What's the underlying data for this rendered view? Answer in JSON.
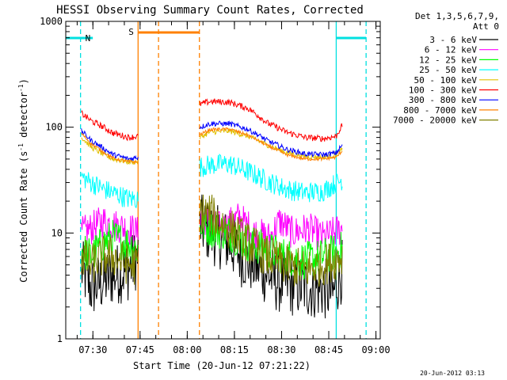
{
  "chart_data": {
    "type": "line",
    "title": "HESSI Observing Summary Count Rates, Corrected",
    "xlabel": "Start Time (20-Jun-12 07:21:22)",
    "ylabel_main": "Corrected Count Rate (s",
    "ylabel_sup1": "-1",
    "ylabel_mid": " detector",
    "ylabel_sup2": "-1",
    "ylabel_end": ")",
    "y_scale": "log",
    "ylim": [
      1,
      1000
    ],
    "xlim_minutes": [
      0,
      100
    ],
    "x_ticks": [
      {
        "label": "07:30",
        "t": 8.63
      },
      {
        "label": "07:45",
        "t": 23.63
      },
      {
        "label": "08:00",
        "t": 38.63
      },
      {
        "label": "08:15",
        "t": 53.63
      },
      {
        "label": "08:30",
        "t": 68.63
      },
      {
        "label": "08:45",
        "t": 83.63
      },
      {
        "label": "09:00",
        "t": 98.63
      }
    ],
    "y_ticks": [
      {
        "label": "1",
        "v": 1
      },
      {
        "label": "10",
        "v": 10
      },
      {
        "label": "100",
        "v": 100
      },
      {
        "label": "1000",
        "v": 1000
      }
    ],
    "legend_header": [
      "Det 1,3,5,6,7,9,",
      "Att 0"
    ],
    "legend_placement": "right",
    "timestamp": "20-Jun-2012 03:13",
    "night_intervals": [
      [
        0,
        8.6
      ],
      [
        86.0,
        95.5
      ]
    ],
    "night_label": "N",
    "night_color": "#00e0e0",
    "saa_interval": [
      23.0,
      42.5
    ],
    "saa_label": "S",
    "saa_color": "#ff8000",
    "vertical_markers": [
      {
        "t": 4.7,
        "color": "#00e0e0",
        "style": "dash"
      },
      {
        "t": 86.0,
        "color": "#00e0e0",
        "style": "solid"
      },
      {
        "t": 95.5,
        "color": "#00e0e0",
        "style": "dash"
      },
      {
        "t": 23.0,
        "color": "#ff8000",
        "style": "solid"
      },
      {
        "t": 29.5,
        "color": "#ff8000",
        "style": "dash"
      },
      {
        "t": 42.5,
        "color": "#ff8000",
        "style": "dash"
      }
    ],
    "series": [
      {
        "name": "3 - 6 keV",
        "color": "#000000",
        "noise": 0.3,
        "points": [
          [
            5,
            4.5
          ],
          [
            8,
            3
          ],
          [
            12,
            3.5
          ],
          [
            15,
            4
          ],
          [
            20,
            4.5
          ],
          [
            23,
            6
          ],
          [
            42.7,
            12
          ],
          [
            46,
            10
          ],
          [
            52,
            8
          ],
          [
            56,
            6
          ],
          [
            62,
            4.5
          ],
          [
            67,
            3.5
          ],
          [
            72,
            3.2
          ],
          [
            78,
            3
          ],
          [
            82,
            3
          ],
          [
            85,
            2.6
          ],
          [
            88,
            4.5
          ]
        ]
      },
      {
        "name": "6 - 12 keV",
        "color": "#ff00ff",
        "noise": 0.16,
        "points": [
          [
            5,
            10
          ],
          [
            8,
            11
          ],
          [
            12,
            13
          ],
          [
            15,
            12
          ],
          [
            20,
            11
          ],
          [
            23,
            10
          ],
          [
            42.7,
            15
          ],
          [
            46,
            12
          ],
          [
            50,
            11
          ],
          [
            55,
            14
          ],
          [
            60,
            10
          ],
          [
            65,
            9
          ],
          [
            68,
            13
          ],
          [
            72,
            10
          ],
          [
            77,
            11
          ],
          [
            82,
            9
          ],
          [
            85,
            10
          ],
          [
            88,
            11
          ]
        ]
      },
      {
        "name": "12 - 25 keV",
        "color": "#00ff00",
        "noise": 0.18,
        "points": [
          [
            5,
            7
          ],
          [
            8,
            6
          ],
          [
            12,
            8
          ],
          [
            15,
            9
          ],
          [
            20,
            8
          ],
          [
            23,
            7
          ],
          [
            42.7,
            12
          ],
          [
            46,
            11
          ],
          [
            52,
            10
          ],
          [
            58,
            8
          ],
          [
            64,
            7
          ],
          [
            70,
            6
          ],
          [
            76,
            5.5
          ],
          [
            82,
            6
          ],
          [
            88,
            7
          ]
        ]
      },
      {
        "name": "25 - 50 keV",
        "color": "#00ffff",
        "noise": 0.1,
        "points": [
          [
            5,
            34
          ],
          [
            8,
            30
          ],
          [
            12,
            26
          ],
          [
            15,
            24
          ],
          [
            20,
            21
          ],
          [
            23,
            21
          ],
          [
            42.7,
            42
          ],
          [
            46,
            44
          ],
          [
            52,
            45
          ],
          [
            58,
            38
          ],
          [
            64,
            31
          ],
          [
            70,
            26
          ],
          [
            76,
            24
          ],
          [
            82,
            25
          ],
          [
            88,
            32
          ]
        ]
      },
      {
        "name": "50 - 100 keV",
        "color": "#e0c000",
        "noise": 0.025,
        "points": [
          [
            5,
            80
          ],
          [
            8,
            65
          ],
          [
            12,
            55
          ],
          [
            15,
            50
          ],
          [
            20,
            47
          ],
          [
            23,
            47
          ],
          [
            42.7,
            80
          ],
          [
            46,
            90
          ],
          [
            52,
            92
          ],
          [
            58,
            82
          ],
          [
            64,
            68
          ],
          [
            70,
            58
          ],
          [
            76,
            53
          ],
          [
            82,
            52
          ],
          [
            86,
            55
          ],
          [
            88,
            62
          ]
        ]
      },
      {
        "name": "100 - 300 keV",
        "color": "#ff0000",
        "noise": 0.03,
        "points": [
          [
            5,
            135
          ],
          [
            8,
            115
          ],
          [
            12,
            100
          ],
          [
            15,
            88
          ],
          [
            20,
            80
          ],
          [
            23,
            82
          ],
          [
            42.7,
            165
          ],
          [
            46,
            175
          ],
          [
            52,
            172
          ],
          [
            58,
            150
          ],
          [
            64,
            110
          ],
          [
            70,
            90
          ],
          [
            76,
            80
          ],
          [
            82,
            78
          ],
          [
            86,
            82
          ],
          [
            88,
            105
          ]
        ]
      },
      {
        "name": "300 - 800 keV",
        "color": "#0000ff",
        "noise": 0.025,
        "points": [
          [
            5,
            92
          ],
          [
            8,
            75
          ],
          [
            12,
            63
          ],
          [
            15,
            55
          ],
          [
            20,
            50
          ],
          [
            23,
            52
          ],
          [
            42.7,
            100
          ],
          [
            46,
            108
          ],
          [
            52,
            108
          ],
          [
            58,
            95
          ],
          [
            64,
            75
          ],
          [
            70,
            62
          ],
          [
            76,
            56
          ],
          [
            82,
            55
          ],
          [
            86,
            57
          ],
          [
            88,
            68
          ]
        ]
      },
      {
        "name": "800 - 7000 keV",
        "color": "#ff8000",
        "noise": 0.015,
        "points": [
          [
            5,
            87
          ],
          [
            8,
            70
          ],
          [
            12,
            58
          ],
          [
            15,
            51
          ],
          [
            20,
            47
          ],
          [
            23,
            47
          ],
          [
            42.7,
            85
          ],
          [
            46,
            95
          ],
          [
            52,
            96
          ],
          [
            58,
            84
          ],
          [
            64,
            67
          ],
          [
            70,
            55
          ],
          [
            76,
            50
          ],
          [
            82,
            50
          ],
          [
            86,
            52
          ],
          [
            88,
            60
          ]
        ]
      },
      {
        "name": "7000 - 20000 keV",
        "color": "#808000",
        "noise": 0.2,
        "points": [
          [
            5,
            6
          ],
          [
            8,
            5
          ],
          [
            12,
            6
          ],
          [
            15,
            6
          ],
          [
            20,
            5
          ],
          [
            23,
            5
          ],
          [
            42.7,
            16
          ],
          [
            46,
            15
          ],
          [
            50,
            12
          ],
          [
            54,
            10
          ],
          [
            58,
            8
          ],
          [
            64,
            6
          ],
          [
            70,
            5
          ],
          [
            76,
            4.5
          ],
          [
            82,
            5
          ],
          [
            88,
            6
          ]
        ]
      }
    ]
  }
}
